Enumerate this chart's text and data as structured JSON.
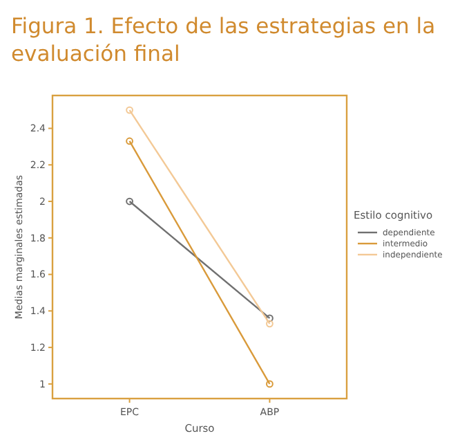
{
  "chart_data": {
    "type": "line",
    "title": "Figura 1. Efecto de las estrategias en la evaluación final",
    "xlabel": "Curso",
    "ylabel": "Medias marginales estimadas",
    "legend_title": "Estilo cognitivo",
    "categories": [
      "EPC",
      "ABP"
    ],
    "series": [
      {
        "name": "dependiente",
        "color": "#707070",
        "values": [
          2,
          1.36
        ]
      },
      {
        "name": "intermedio",
        "color": "#d99a3a",
        "values": [
          2.33,
          1
        ]
      },
      {
        "name": "independiente",
        "color": "#f3c996",
        "values": [
          2.5,
          1.33
        ]
      }
    ],
    "ylim": [
      0.92,
      2.58
    ],
    "yticks": [
      1,
      1.2,
      1.4,
      1.6,
      1.8,
      2,
      2.2,
      2.4
    ],
    "marker": "circle",
    "legend": "right",
    "grid": false
  }
}
